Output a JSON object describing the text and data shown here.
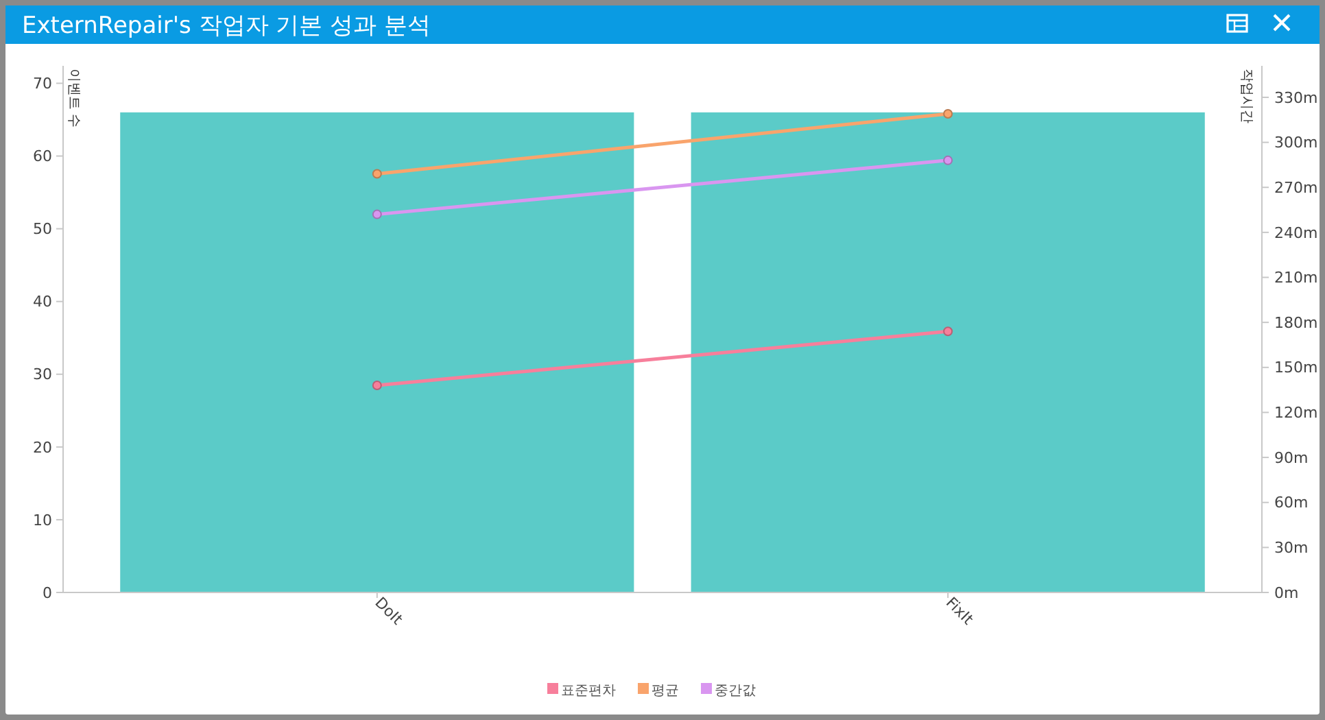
{
  "chart_data": {
    "type": "bar",
    "title": "ExternRepair's 작업자 기본 성과 분석",
    "ylabel": "이벤트 수",
    "y2label": "작업시간",
    "categories": [
      "DoIt",
      "FixIt"
    ],
    "series": [
      {
        "color": "#5bcbc8",
        "values": [
          66,
          66
        ]
      },
      {
        "type": "line",
        "name": "표준편차",
        "color": "#f77f9b",
        "axis": "y2",
        "values": [
          138,
          174
        ]
      },
      {
        "type": "line",
        "name": "평균",
        "color": "#f9a46c",
        "axis": "y2",
        "values": [
          279,
          319
        ]
      },
      {
        "type": "line",
        "name": "중간값",
        "color": "#d996f0",
        "axis": "y2",
        "values": [
          252,
          288
        ]
      }
    ],
    "ylim": [
      0,
      72.4
    ],
    "yticks": [
      0,
      10,
      20,
      30,
      40,
      50,
      60,
      70
    ],
    "y2lim": [
      0,
      351
    ],
    "y2ticks": [
      {
        "value": 0,
        "label": "0m"
      },
      {
        "value": 30,
        "label": "30m"
      },
      {
        "value": 60,
        "label": "60m"
      },
      {
        "value": 90,
        "label": "90m"
      },
      {
        "value": 120,
        "label": "120m"
      },
      {
        "value": 150,
        "label": "150m"
      },
      {
        "value": 180,
        "label": "180m"
      },
      {
        "value": 210,
        "label": "210m"
      },
      {
        "value": 240,
        "label": "240m"
      },
      {
        "value": 270,
        "label": "270m"
      },
      {
        "value": 300,
        "label": "300m"
      },
      {
        "value": 330,
        "label": "330m"
      }
    ],
    "grid": false,
    "legend": "bottom",
    "marker": "circle",
    "line_style": "solid"
  }
}
